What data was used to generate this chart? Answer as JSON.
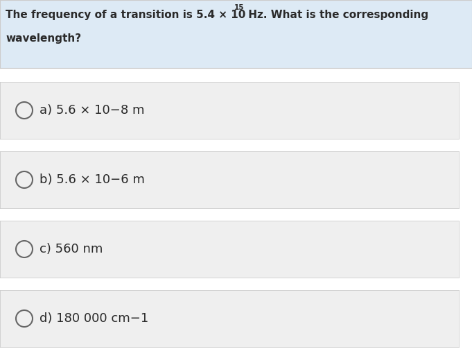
{
  "question_text1": "The frequency of a transition is 5.4 × 10",
  "question_sup": "15",
  "question_text2": " Hz. What is the corresponding",
  "question_text3": "wavelength?",
  "options": [
    "a) 5.6 × 10−8 m",
    "b) 5.6 × 10−6 m",
    "c) 560 nm",
    "d) 180 000 cm−1"
  ],
  "bg_question": "#ddeaf5",
  "bg_option": "#efefef",
  "bg_white": "#ffffff",
  "text_color": "#2a2a2a",
  "circle_edgecolor": "#666666",
  "border_color": "#cccccc",
  "fig_w": 6.81,
  "fig_h": 5.13,
  "dpi": 100
}
